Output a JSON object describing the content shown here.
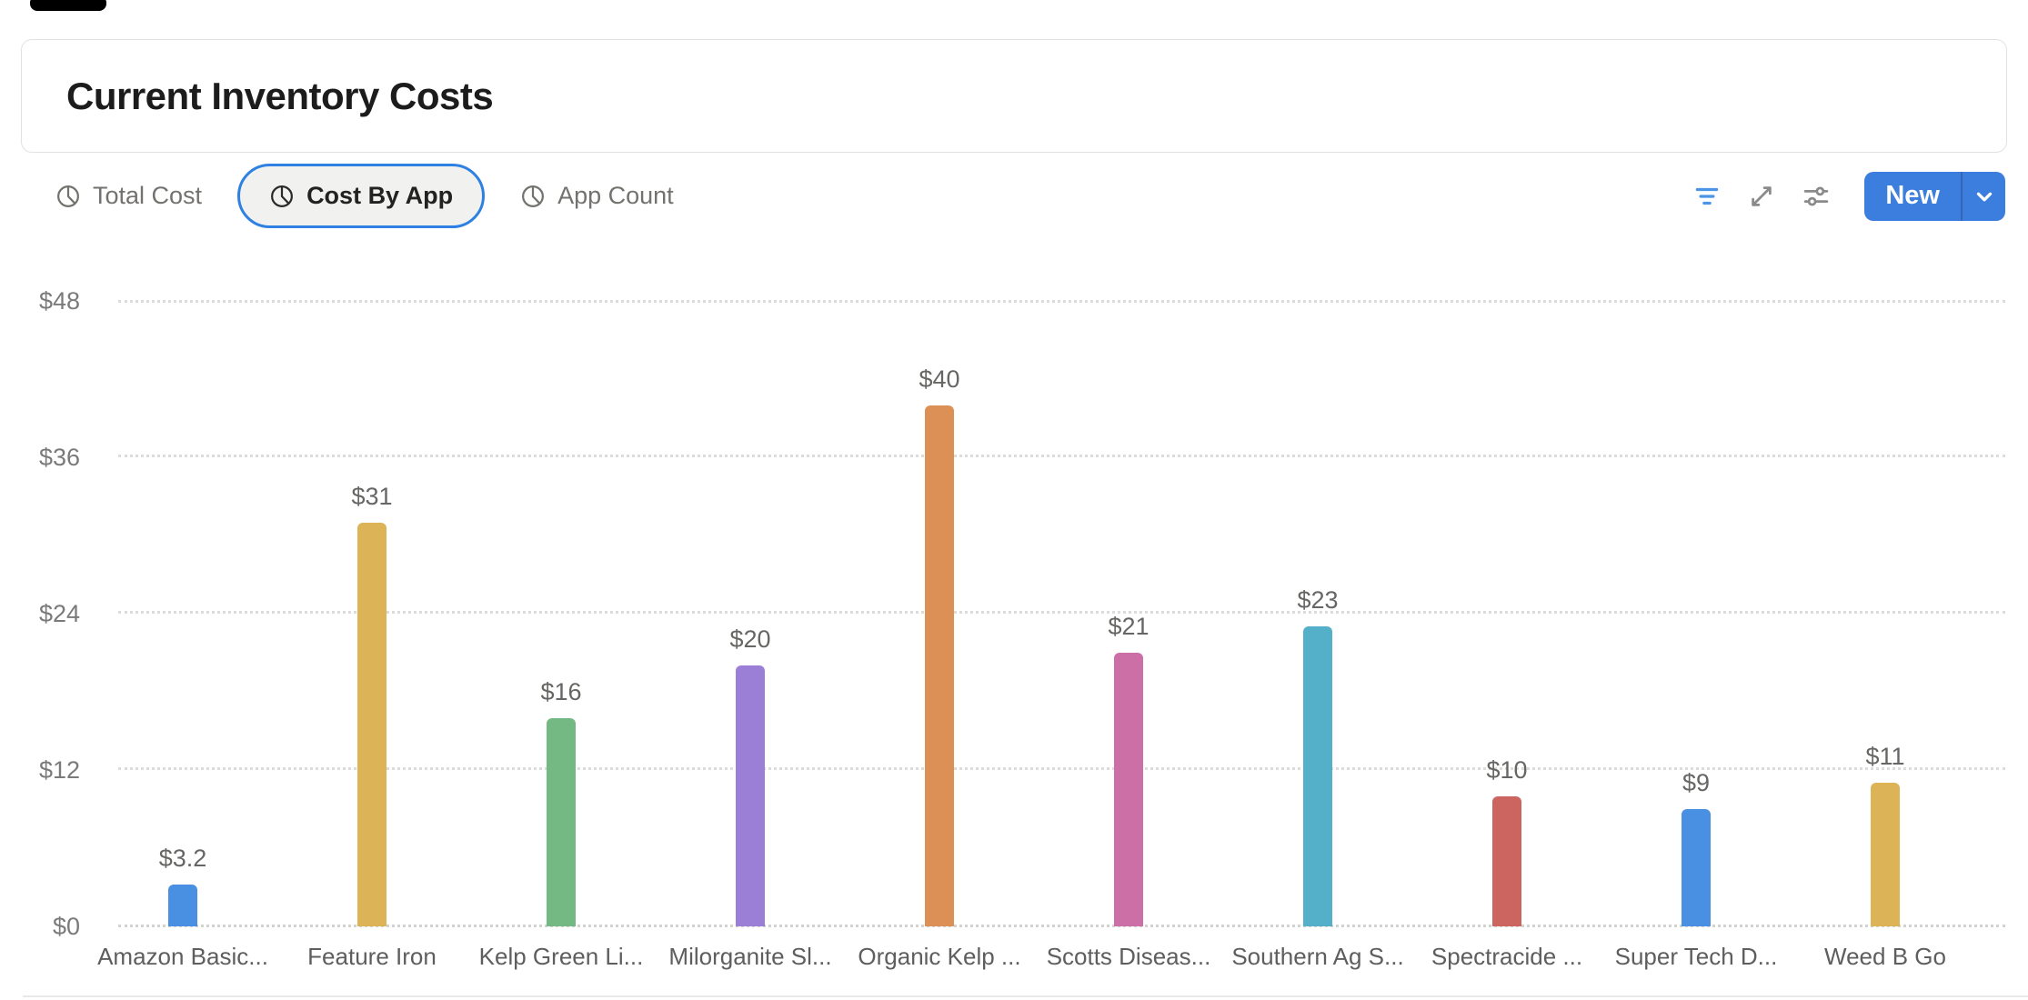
{
  "header": {
    "title": "Current Inventory Costs"
  },
  "tabs": [
    {
      "label": "Total Cost",
      "selected": false
    },
    {
      "label": "Cost By App",
      "selected": true
    },
    {
      "label": "App Count",
      "selected": false
    }
  ],
  "toolbar": {
    "new_button": "New"
  },
  "colors": {
    "tab_selected_border": "#2E80E2",
    "new_button_blue": "#3C7EDD",
    "filter_icon_blue": "#4C94E6",
    "icon_gray": "#8A8A8A",
    "grid_gray": "#DCDCDA"
  },
  "chart_data": {
    "type": "bar",
    "title": "Current Inventory Costs",
    "categories": [
      "Amazon Basic...",
      "Feature Iron",
      "Kelp Green Li...",
      "Milorganite Sl...",
      "Organic Kelp ...",
      "Scotts Diseas...",
      "Southern Ag S...",
      "Spectracide ...",
      "Super Tech D...",
      "Weed B Go"
    ],
    "values": [
      3.2,
      31,
      16,
      20,
      40,
      21,
      23,
      10,
      9,
      11
    ],
    "bar_labels": [
      "$3.2",
      "$31",
      "$16",
      "$20",
      "$40",
      "$21",
      "$23",
      "$10",
      "$9",
      "$11"
    ],
    "bar_colors": [
      "#4A90E2",
      "#DCB357",
      "#74B884",
      "#9B7FD6",
      "#DD9055",
      "#CC6FA7",
      "#54AFC9",
      "#CC655F",
      "#4A90E2",
      "#DCB357"
    ],
    "xlabel": "",
    "ylabel": "",
    "y_ticks": [
      "$0",
      "$12",
      "$24",
      "$36",
      "$48"
    ],
    "ylim": [
      0,
      48
    ],
    "grid": "horizontal-dotted",
    "legend": "none"
  }
}
